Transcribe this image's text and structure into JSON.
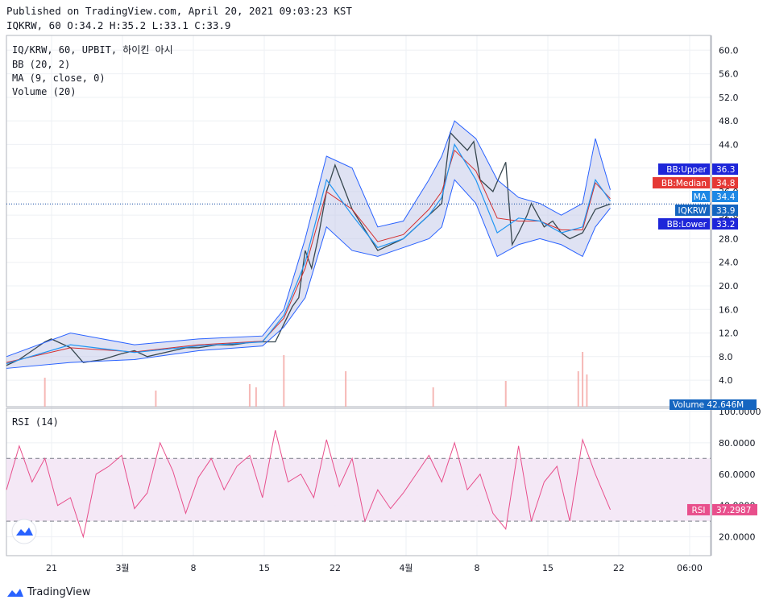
{
  "header": {
    "published": "Published on TradingView.com, April 20, 2021 09:03:23 KST",
    "ohlc": "IQKRW, 60 O:34.2 H:35.2 L:33.1 C:33.9"
  },
  "legend": {
    "symbol": "IQ/KRW, 60, UPBIT, 하이킨 아시",
    "bb": "BB (20, 2)",
    "ma": "MA (9, close, 0)",
    "volume": "Volume (20)",
    "rsi": "RSI (14)"
  },
  "footer": {
    "brand": "TradingView"
  },
  "colors": {
    "up": "#26a69a",
    "down": "#ef5350",
    "bb_band": "#2962ff",
    "bb_fill": "#c5cae9",
    "bb_median": "#d32f2f",
    "ma": "#2196f3",
    "rsi": "#e84f8c",
    "rsi_zone": "#f3e5f5",
    "price_line": "#0d47a1"
  },
  "chart_data": [
    {
      "type": "line",
      "title": "IQ/KRW, 60, UPBIT, 하이킨 아시",
      "xlabel": "",
      "ylabel": "",
      "x_tick_labels": [
        "21",
        "3월",
        "8",
        "15",
        "22",
        "4월",
        "8",
        "15",
        "22",
        "06:00"
      ],
      "y_ticks": [
        4.0,
        8.0,
        12.0,
        16.0,
        20.0,
        24.0,
        28.0,
        32.0,
        36.0,
        40.0,
        44.0,
        48.0,
        52.0,
        56.0,
        60.0
      ],
      "ylim": [
        -0.5,
        62.5
      ],
      "grid": true,
      "series": [
        {
          "name": "IQKRW",
          "x": [
            0,
            6,
            12,
            18,
            21,
            24,
            30,
            36,
            45,
            54,
            60,
            66,
            72,
            78,
            84,
            90,
            99,
            106,
            116,
            126,
            132,
            134,
            137,
            140,
            143,
            146,
            150,
            154,
            162,
            174,
            180,
            186,
            192,
            198,
            204,
            208,
            216,
            219,
            222,
            228,
            234,
            237,
            240,
            244,
            246,
            252,
            256,
            260,
            264,
            270,
            276,
            283
          ],
          "values": [
            6.5,
            7.5,
            9.0,
            10.5,
            11.0,
            10.5,
            9.5,
            7.0,
            7.5,
            8.5,
            9.0,
            8.0,
            8.5,
            9.0,
            9.5,
            9.5,
            10.0,
            10.0,
            10.5,
            10.5,
            15.0,
            16.5,
            18.0,
            26.0,
            23.0,
            28.0,
            36.0,
            40.5,
            33.0,
            26.0,
            27.0,
            28.0,
            30.0,
            32.0,
            34.0,
            46.0,
            43.0,
            44.5,
            38.0,
            36.0,
            41.0,
            27.0,
            29.0,
            32.0,
            34.0,
            30.0,
            31.0,
            29.0,
            28.0,
            29.0,
            33.0,
            33.9
          ]
        },
        {
          "name": "BB:Upper",
          "x": [
            0,
            30,
            60,
            90,
            120,
            130,
            140,
            150,
            162,
            174,
            186,
            198,
            204,
            210,
            220,
            230,
            240,
            250,
            260,
            270,
            276,
            283
          ],
          "values": [
            8.0,
            12.0,
            10.0,
            11.0,
            11.5,
            16.0,
            28.0,
            42.0,
            40.0,
            30.0,
            31.0,
            38.0,
            42.0,
            48.0,
            45.0,
            38.0,
            35.0,
            34.0,
            32.0,
            34.0,
            45.0,
            36.3
          ]
        },
        {
          "name": "BB:Lower",
          "x": [
            0,
            30,
            60,
            90,
            120,
            130,
            140,
            150,
            162,
            174,
            186,
            198,
            204,
            210,
            220,
            230,
            240,
            250,
            260,
            270,
            276,
            283
          ],
          "values": [
            6.0,
            7.0,
            7.5,
            9.0,
            9.8,
            13.0,
            18.0,
            30.0,
            26.0,
            25.0,
            26.5,
            28.0,
            30.0,
            38.0,
            34.0,
            25.0,
            27.0,
            28.0,
            27.0,
            25.0,
            30.0,
            33.2
          ]
        },
        {
          "name": "BB:Median",
          "x": [
            0,
            30,
            60,
            90,
            120,
            130,
            140,
            150,
            162,
            174,
            186,
            198,
            204,
            210,
            220,
            230,
            240,
            250,
            260,
            270,
            276,
            283
          ],
          "values": [
            7.0,
            9.5,
            8.8,
            10.0,
            10.6,
            14.5,
            23.0,
            36.0,
            33.0,
            27.5,
            28.7,
            33.0,
            36.0,
            43.0,
            39.5,
            31.5,
            31.0,
            31.0,
            29.5,
            29.5,
            37.5,
            34.8
          ]
        },
        {
          "name": "MA",
          "x": [
            0,
            30,
            60,
            90,
            120,
            130,
            140,
            150,
            162,
            174,
            186,
            198,
            204,
            210,
            220,
            230,
            240,
            250,
            260,
            270,
            276,
            283
          ],
          "values": [
            6.8,
            10.0,
            8.7,
            9.8,
            10.5,
            15.0,
            24.0,
            38.0,
            32.0,
            26.5,
            28.0,
            32.0,
            35.0,
            44.0,
            38.0,
            29.0,
            31.5,
            31.0,
            29.0,
            30.0,
            38.0,
            34.4
          ]
        }
      ],
      "price_labels": [
        {
          "name": "BB:Upper",
          "value": "36.3"
        },
        {
          "name": "BB:Median",
          "value": "34.8"
        },
        {
          "name": "MA",
          "value": "34.4"
        },
        {
          "name": "IQKRW",
          "value": "33.9"
        },
        {
          "name": "BB:Lower",
          "value": "33.2"
        }
      ],
      "volume": {
        "name": "Volume",
        "value": "42.646M",
        "spikes": [
          {
            "x": 18,
            "v": 0.45
          },
          {
            "x": 70,
            "v": 0.25
          },
          {
            "x": 114,
            "v": 0.35
          },
          {
            "x": 117,
            "v": 0.3
          },
          {
            "x": 130,
            "v": 0.8
          },
          {
            "x": 159,
            "v": 0.55
          },
          {
            "x": 200,
            "v": 0.3
          },
          {
            "x": 234,
            "v": 0.4
          },
          {
            "x": 268,
            "v": 0.55
          },
          {
            "x": 270,
            "v": 0.85
          },
          {
            "x": 272,
            "v": 0.5
          }
        ]
      }
    },
    {
      "type": "line",
      "title": "RSI (14)",
      "y_ticks": [
        20.0,
        40.0,
        60.0,
        80.0,
        100.0
      ],
      "y_tick_labels": [
        "20.0000",
        "40.0000",
        "60.0000",
        "80.0000",
        "100.0000"
      ],
      "ylim": [
        8,
        102
      ],
      "upper_band": 70,
      "lower_band": 30,
      "series": [
        {
          "name": "RSI",
          "x": [
            0,
            6,
            12,
            18,
            24,
            30,
            36,
            42,
            48,
            54,
            60,
            66,
            72,
            78,
            84,
            90,
            96,
            102,
            108,
            114,
            120,
            126,
            132,
            138,
            144,
            150,
            156,
            162,
            168,
            174,
            180,
            186,
            192,
            198,
            204,
            210,
            216,
            222,
            228,
            234,
            240,
            246,
            252,
            258,
            264,
            270,
            276,
            283
          ],
          "values": [
            50,
            78,
            55,
            70,
            40,
            45,
            20,
            60,
            65,
            72,
            38,
            48,
            80,
            62,
            35,
            58,
            70,
            50,
            65,
            72,
            45,
            88,
            55,
            60,
            45,
            82,
            52,
            70,
            30,
            50,
            38,
            48,
            60,
            72,
            55,
            80,
            50,
            60,
            35,
            25,
            78,
            30,
            55,
            65,
            30,
            82,
            60,
            37.3
          ]
        }
      ],
      "price_label": {
        "name": "RSI",
        "value": "37.2987"
      }
    }
  ]
}
